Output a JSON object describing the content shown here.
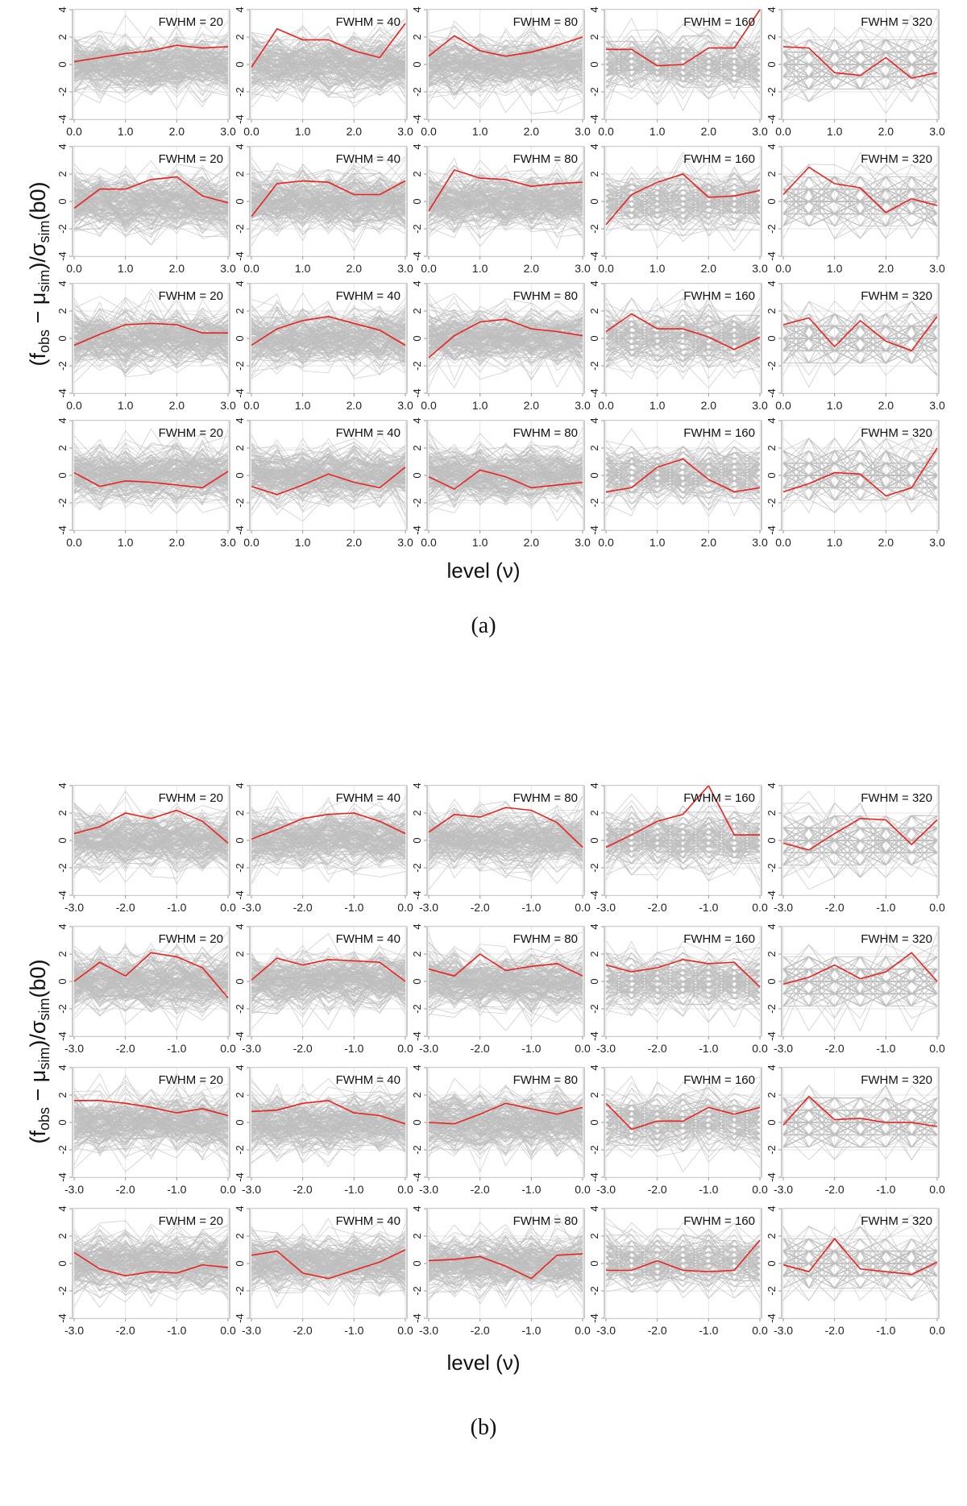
{
  "figure": {
    "ylabel_parts": [
      "(f",
      "obs",
      " − μ",
      "sim",
      ")/σ",
      "sim",
      "(b0)"
    ],
    "xlabel": "level (ν)",
    "colors": {
      "simulated": "#bebebe",
      "observed": "#e8231e",
      "frame": "#9a9a9a",
      "grid": "#e6e6e6"
    }
  },
  "chart_data": [
    {
      "type": "line",
      "caption": "(a)",
      "xlabel": "level (ν)",
      "ylabel": "(f_obs − μ_sim)/σ_sim(b0)",
      "x": [
        0.0,
        0.5,
        1.0,
        1.5,
        2.0,
        2.5,
        3.0
      ],
      "xlim": [
        0.0,
        3.0
      ],
      "ylim": [
        -4,
        4
      ],
      "xticks": [
        "0.0",
        "1.0",
        "2.0",
        "3.0"
      ],
      "yticks": [
        "-4",
        "-2",
        "0",
        "2",
        "4"
      ],
      "column_titles": [
        "FWHM = 20",
        "FWHM = 40",
        "FWHM = 80",
        "FWHM = 160",
        "FWHM = 320"
      ],
      "series_observed": [
        [
          [
            0.2,
            0.5,
            0.8,
            1.0,
            1.4,
            1.2,
            1.3
          ],
          [
            -0.2,
            2.6,
            1.8,
            1.8,
            1.0,
            0.5,
            3.0
          ],
          [
            0.6,
            2.1,
            1.0,
            0.6,
            0.9,
            1.4,
            2.0
          ],
          [
            1.1,
            1.1,
            -0.1,
            0.0,
            1.2,
            1.2,
            4.0
          ],
          [
            1.3,
            1.2,
            -0.6,
            -0.8,
            0.5,
            -1.0,
            -0.6
          ]
        ],
        [
          [
            -0.5,
            0.9,
            0.9,
            1.6,
            1.8,
            0.4,
            -0.1
          ],
          [
            -1.1,
            1.3,
            1.5,
            1.4,
            0.5,
            0.5,
            1.5
          ],
          [
            -0.7,
            2.3,
            1.7,
            1.6,
            1.1,
            1.3,
            1.4
          ],
          [
            -1.7,
            0.5,
            1.4,
            2.0,
            0.3,
            0.4,
            0.8
          ],
          [
            0.5,
            2.5,
            1.3,
            1.0,
            -0.8,
            0.2,
            -0.3
          ]
        ],
        [
          [
            -0.5,
            0.3,
            1.0,
            1.1,
            1.0,
            0.4,
            0.4
          ],
          [
            -0.5,
            0.7,
            1.3,
            1.6,
            1.1,
            0.6,
            -0.5
          ],
          [
            -1.4,
            0.2,
            1.2,
            1.4,
            0.7,
            0.5,
            0.2
          ],
          [
            0.5,
            1.8,
            0.7,
            0.7,
            0.1,
            -0.8,
            0.1
          ],
          [
            1.0,
            1.5,
            -0.6,
            1.3,
            -0.2,
            -0.9,
            1.6
          ]
        ],
        [
          [
            0.2,
            -0.8,
            -0.4,
            -0.5,
            -0.7,
            -0.9,
            0.3
          ],
          [
            -0.8,
            -1.4,
            -0.7,
            0.1,
            -0.5,
            -0.9,
            0.6
          ],
          [
            -0.1,
            -1.0,
            0.4,
            -0.1,
            -0.9,
            -0.7,
            -0.5
          ],
          [
            -1.2,
            -0.9,
            0.6,
            1.2,
            -0.3,
            -1.2,
            -0.9
          ],
          [
            -1.2,
            -0.6,
            0.2,
            0.1,
            -1.5,
            -0.9,
            2.0
          ]
        ]
      ]
    },
    {
      "type": "line",
      "caption": "(b)",
      "xlabel": "level (ν)",
      "ylabel": "(f_obs − μ_sim)/σ_sim(b0)",
      "x": [
        -3.0,
        -2.5,
        -2.0,
        -1.5,
        -1.0,
        -0.5,
        0.0
      ],
      "xlim": [
        -3.0,
        0.0
      ],
      "ylim": [
        -4,
        4
      ],
      "xticks": [
        "-3.0",
        "-2.0",
        "-1.0",
        "0.0"
      ],
      "yticks": [
        "-4",
        "-2",
        "0",
        "2",
        "4"
      ],
      "column_titles": [
        "FWHM = 20",
        "FWHM = 40",
        "FWHM = 80",
        "FWHM = 160",
        "FWHM = 320"
      ],
      "series_observed": [
        [
          [
            0.5,
            1.0,
            2.0,
            1.6,
            2.2,
            1.4,
            -0.2
          ],
          [
            0.1,
            0.8,
            1.6,
            1.9,
            2.0,
            1.4,
            0.5
          ],
          [
            0.6,
            1.9,
            1.7,
            2.4,
            2.2,
            1.3,
            -0.5
          ],
          [
            -0.5,
            0.4,
            1.4,
            1.9,
            4.0,
            0.4,
            0.4
          ],
          [
            -0.2,
            -0.7,
            0.5,
            1.6,
            1.5,
            -0.3,
            1.5
          ]
        ],
        [
          [
            0.0,
            1.4,
            0.4,
            2.1,
            1.8,
            1.0,
            -1.2
          ],
          [
            0.1,
            1.7,
            1.2,
            1.6,
            1.5,
            1.4,
            0.0
          ],
          [
            0.9,
            0.4,
            2.0,
            0.8,
            1.1,
            1.3,
            0.4
          ],
          [
            1.2,
            0.7,
            1.0,
            1.6,
            1.3,
            1.4,
            -0.4
          ],
          [
            -0.2,
            0.3,
            1.2,
            0.2,
            0.7,
            2.1,
            0.0
          ]
        ],
        [
          [
            1.6,
            1.6,
            1.4,
            1.1,
            0.7,
            1.0,
            0.5
          ],
          [
            0.8,
            0.9,
            1.4,
            1.6,
            0.7,
            0.5,
            -0.1
          ],
          [
            0.0,
            -0.1,
            0.6,
            1.4,
            1.0,
            0.6,
            1.1
          ],
          [
            1.4,
            -0.5,
            0.1,
            0.1,
            1.1,
            0.6,
            1.1
          ],
          [
            -0.2,
            1.9,
            0.2,
            0.3,
            0.0,
            0.0,
            -0.3
          ]
        ],
        [
          [
            0.8,
            -0.4,
            -0.9,
            -0.6,
            -0.7,
            -0.1,
            -0.3
          ],
          [
            0.6,
            0.9,
            -0.7,
            -1.1,
            -0.5,
            0.1,
            1.0
          ],
          [
            0.2,
            0.3,
            0.5,
            -0.2,
            -1.1,
            0.6,
            0.7
          ],
          [
            -0.5,
            -0.5,
            0.2,
            -0.5,
            -0.6,
            -0.5,
            1.7
          ],
          [
            -0.1,
            -0.6,
            1.8,
            -0.4,
            -0.6,
            -0.8,
            0.1
          ]
        ]
      ]
    }
  ]
}
